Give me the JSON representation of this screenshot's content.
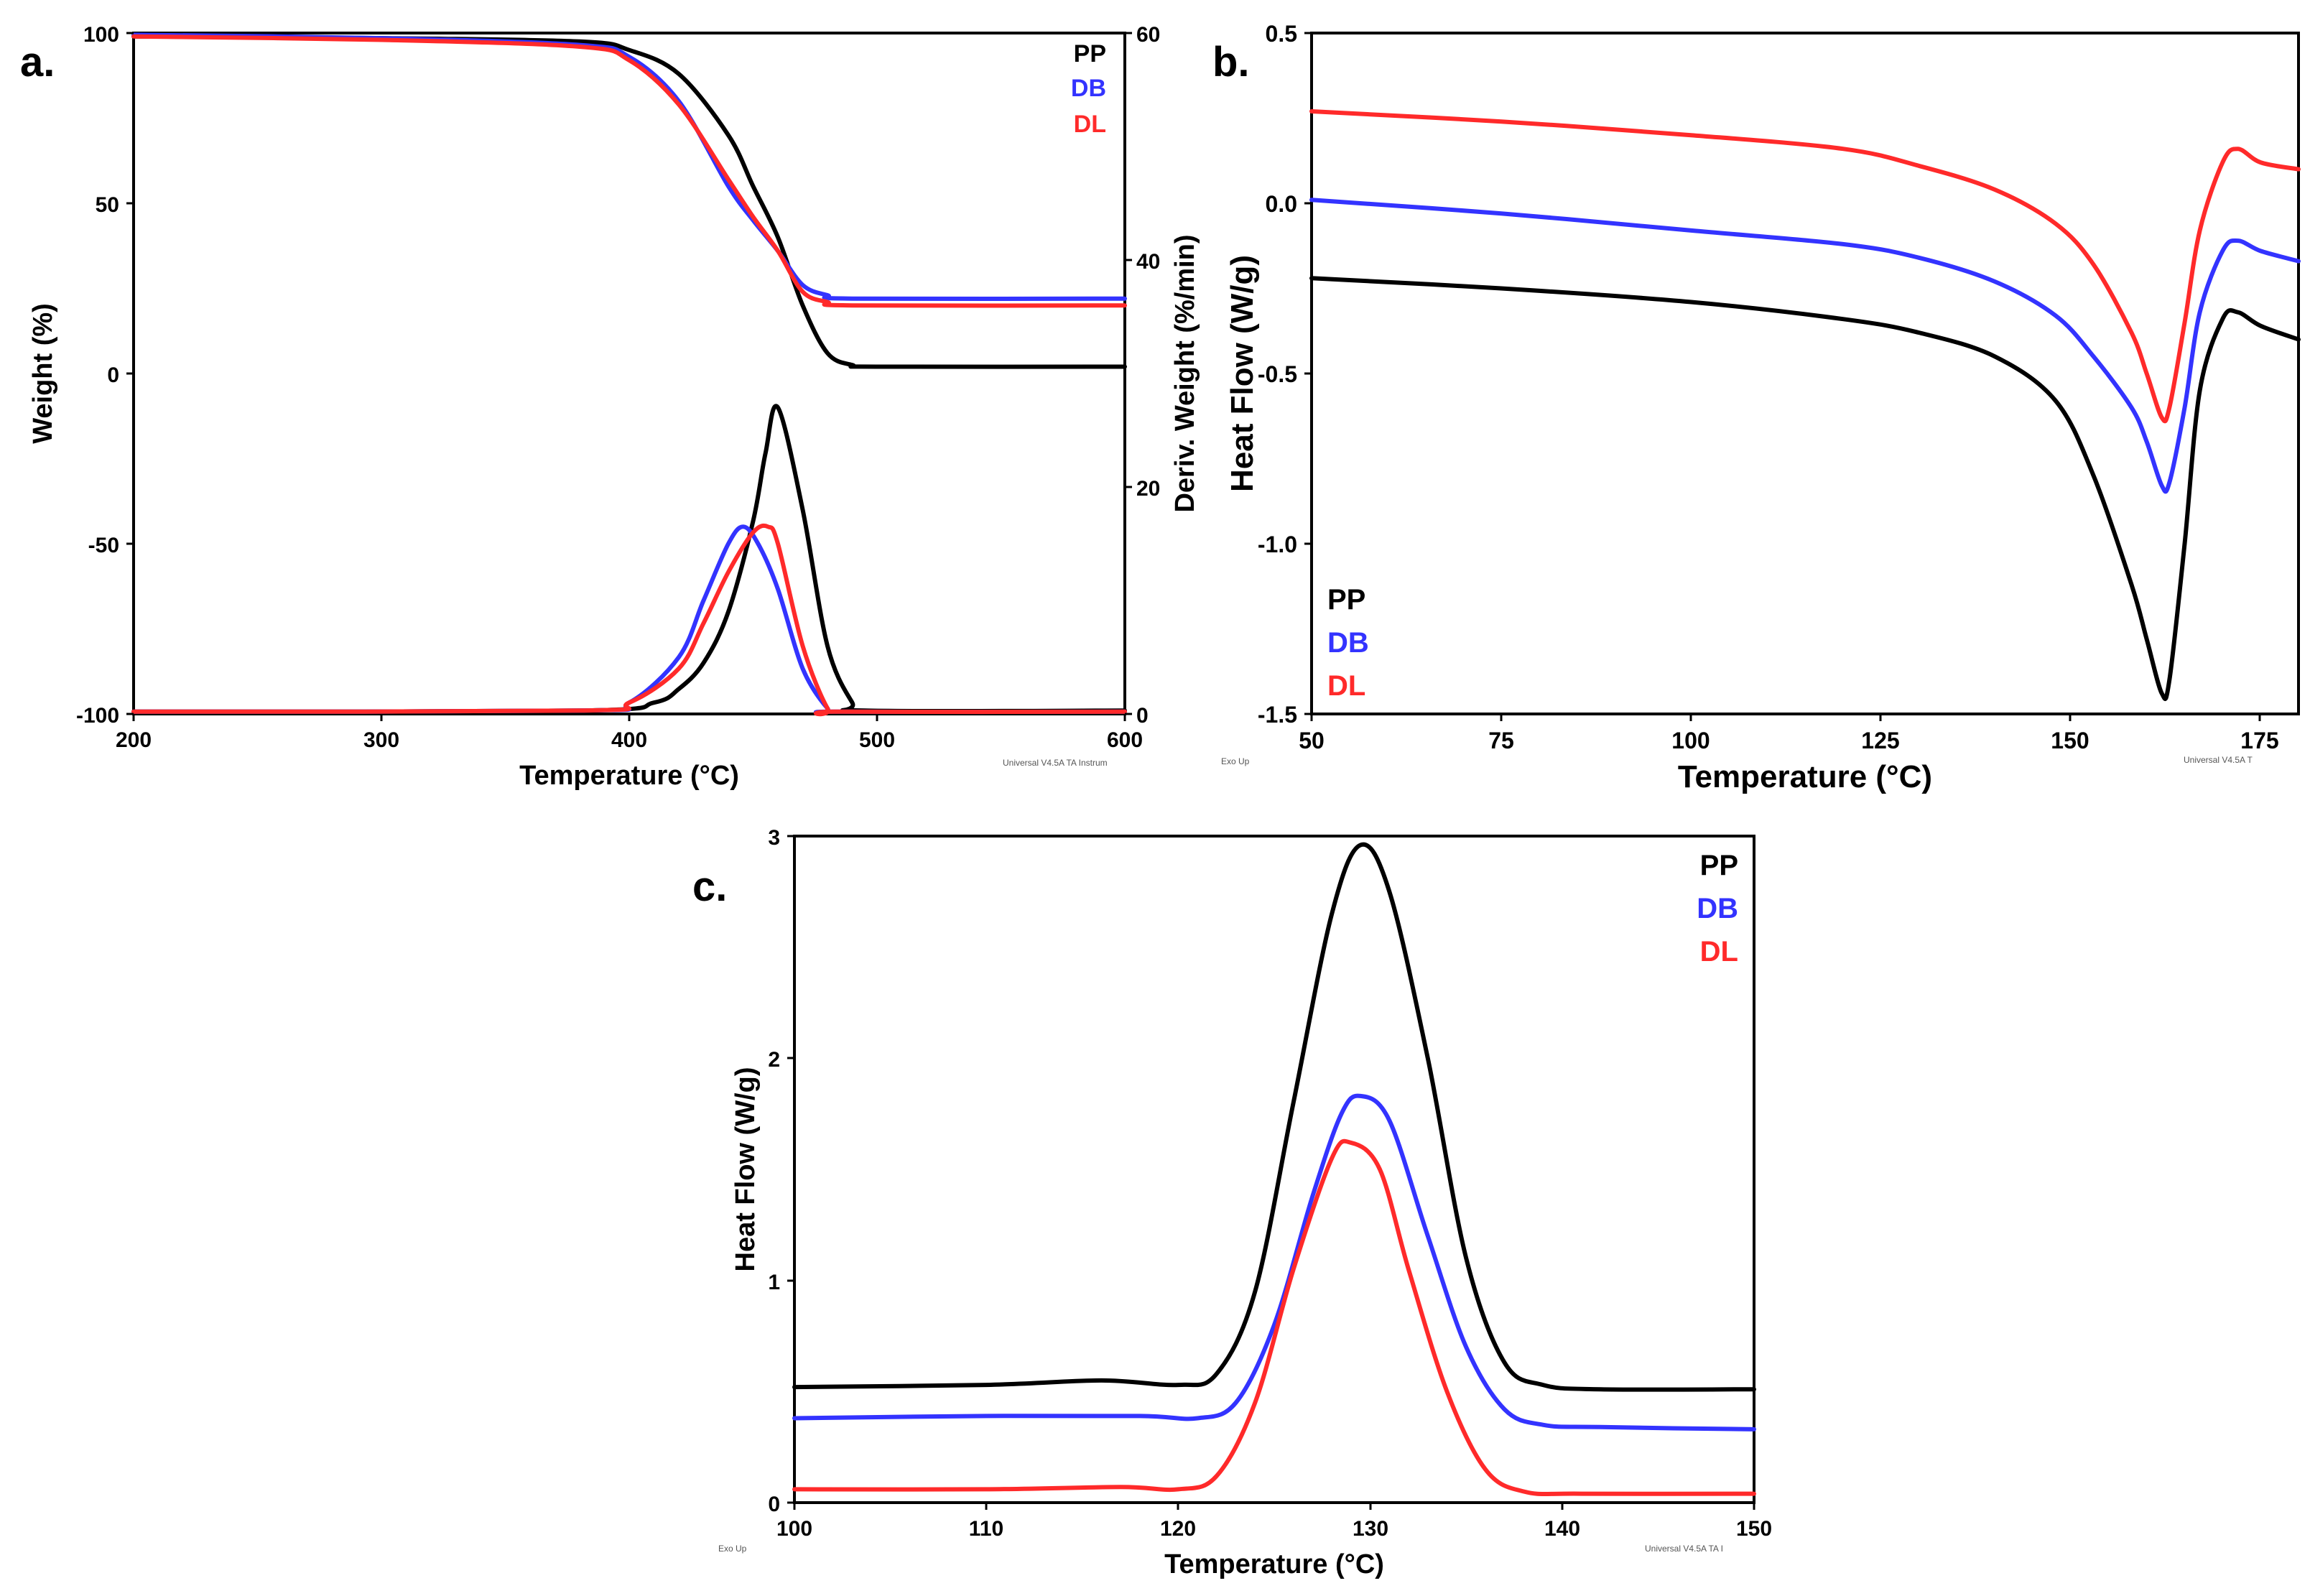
{
  "colors": {
    "PP": "#000000",
    "DB": "#3333ff",
    "DL": "#ff2a2a"
  },
  "chart_data": [
    {
      "panel": "a.",
      "type": "line",
      "xlabel": "Temperature (°C)",
      "ylabel": "Weight (%)",
      "y2label": "Deriv. Weight (%/min)",
      "xlim": [
        200,
        600
      ],
      "ylim": [
        -100,
        100
      ],
      "y2lim": [
        0,
        60
      ],
      "xticks": [
        "200",
        "300",
        "400",
        "500",
        "600"
      ],
      "yticks": [
        "-100",
        "-50",
        "0",
        "50",
        "100"
      ],
      "y2ticks": [
        "0",
        "20",
        "40",
        "60"
      ],
      "legend": [
        "PP",
        "DB",
        "DL"
      ],
      "footer": "Universal V4.5A TA Instrum",
      "series": [
        {
          "name": "PP",
          "axis": "left",
          "x": [
            200,
            300,
            380,
            400,
            420,
            440,
            450,
            460,
            470,
            480,
            490,
            500,
            600
          ],
          "y": [
            99,
            98.5,
            97.5,
            95,
            88,
            70,
            55,
            40,
            20,
            6,
            2.5,
            2,
            2
          ]
        },
        {
          "name": "DB",
          "axis": "left",
          "x": [
            200,
            300,
            380,
            400,
            420,
            440,
            450,
            460,
            470,
            480,
            490,
            600
          ],
          "y": [
            99.5,
            98.5,
            96.5,
            93,
            80,
            55,
            45,
            36,
            26,
            23,
            22,
            22
          ]
        },
        {
          "name": "DL",
          "axis": "left",
          "x": [
            200,
            300,
            380,
            400,
            420,
            440,
            450,
            460,
            470,
            480,
            490,
            600
          ],
          "y": [
            99,
            98,
            96,
            92,
            79,
            57,
            46,
            36,
            24,
            21,
            20,
            20
          ]
        },
        {
          "name": "PP",
          "axis": "right",
          "x": [
            200,
            380,
            410,
            420,
            430,
            440,
            450,
            455,
            460,
            470,
            480,
            490,
            495,
            600
          ],
          "y": [
            0.2,
            0.3,
            1,
            2.2,
            4.5,
            9,
            17,
            23,
            27,
            18,
            6,
            1,
            0.3,
            0.3
          ]
        },
        {
          "name": "DB",
          "axis": "right",
          "x": [
            200,
            380,
            400,
            420,
            430,
            440,
            446,
            452,
            460,
            470,
            480,
            485,
            600
          ],
          "y": [
            0.2,
            0.3,
            1,
            5,
            10,
            15,
            16.5,
            15,
            11,
            4,
            0.5,
            0.2,
            0.2
          ]
        },
        {
          "name": "DL",
          "axis": "right",
          "x": [
            200,
            380,
            400,
            420,
            430,
            440,
            450,
            456,
            460,
            470,
            480,
            485,
            600
          ],
          "y": [
            0.2,
            0.3,
            1,
            4,
            8,
            12.5,
            16,
            16.5,
            15,
            6,
            0.5,
            0.2,
            0.2
          ]
        }
      ]
    },
    {
      "panel": "b.",
      "type": "line",
      "xlabel": "Temperature (°C)",
      "ylabel": "Heat Flow (W/g)",
      "xlim": [
        50,
        180
      ],
      "ylim": [
        -1.5,
        0.5
      ],
      "xticks": [
        "50",
        "75",
        "100",
        "125",
        "150",
        "175"
      ],
      "yticks": [
        "-1.5",
        "-1.0",
        "-0.5",
        "0.0",
        "0.5"
      ],
      "legend": [
        "PP",
        "DB",
        "DL"
      ],
      "footer_left": "Exo Up",
      "footer": "Universal V4.5A T",
      "series": [
        {
          "name": "PP",
          "x": [
            50,
            75,
            100,
            120,
            130,
            140,
            148,
            153,
            158,
            160,
            162,
            163,
            165,
            167,
            170,
            172,
            175,
            180
          ],
          "y": [
            -0.22,
            -0.25,
            -0.29,
            -0.34,
            -0.38,
            -0.45,
            -0.58,
            -0.8,
            -1.12,
            -1.28,
            -1.44,
            -1.4,
            -1.0,
            -0.55,
            -0.34,
            -0.32,
            -0.36,
            -0.4
          ]
        },
        {
          "name": "DB",
          "x": [
            50,
            75,
            100,
            120,
            130,
            140,
            148,
            153,
            158,
            160,
            162,
            163,
            165,
            167,
            170,
            172,
            175,
            180
          ],
          "y": [
            0.01,
            -0.03,
            -0.08,
            -0.12,
            -0.16,
            -0.23,
            -0.33,
            -0.45,
            -0.6,
            -0.7,
            -0.83,
            -0.82,
            -0.6,
            -0.32,
            -0.14,
            -0.11,
            -0.14,
            -0.17
          ]
        },
        {
          "name": "DL",
          "x": [
            50,
            75,
            100,
            120,
            130,
            140,
            148,
            153,
            158,
            160,
            162,
            163,
            165,
            167,
            170,
            172,
            175,
            180
          ],
          "y": [
            0.27,
            0.24,
            0.2,
            0.16,
            0.11,
            0.04,
            -0.06,
            -0.18,
            -0.38,
            -0.5,
            -0.63,
            -0.6,
            -0.35,
            -0.08,
            0.12,
            0.16,
            0.12,
            0.1
          ]
        }
      ]
    },
    {
      "panel": "c.",
      "type": "line",
      "xlabel": "Temperature (°C)",
      "ylabel": "Heat Flow (W/g)",
      "xlim": [
        100,
        150
      ],
      "ylim": [
        0,
        3
      ],
      "xticks": [
        "100",
        "110",
        "120",
        "130",
        "140",
        "150"
      ],
      "yticks": [
        "0",
        "1",
        "2",
        "3"
      ],
      "legend": [
        "PP",
        "DB",
        "DL"
      ],
      "footer_left": "Exo Up",
      "footer": "Universal V4.5A TA I",
      "series": [
        {
          "name": "PP",
          "x": [
            100,
            110,
            116,
            120,
            122,
            124,
            126,
            128,
            129.5,
            131,
            133,
            135,
            137,
            139,
            142,
            150
          ],
          "y": [
            0.52,
            0.53,
            0.55,
            0.53,
            0.58,
            0.95,
            1.8,
            2.65,
            2.96,
            2.75,
            2.0,
            1.1,
            0.63,
            0.53,
            0.51,
            0.51
          ]
        },
        {
          "name": "DB",
          "x": [
            100,
            110,
            118,
            121,
            123,
            125,
            127,
            128.5,
            129.5,
            131,
            133,
            135,
            137,
            139,
            142,
            150
          ],
          "y": [
            0.38,
            0.39,
            0.39,
            0.38,
            0.45,
            0.8,
            1.38,
            1.75,
            1.83,
            1.72,
            1.2,
            0.7,
            0.42,
            0.35,
            0.34,
            0.33
          ]
        },
        {
          "name": "DL",
          "x": [
            100,
            110,
            117,
            120,
            122,
            124,
            126,
            128,
            129,
            130.5,
            132,
            134,
            136,
            138,
            141,
            150
          ],
          "y": [
            0.06,
            0.06,
            0.07,
            0.06,
            0.12,
            0.45,
            1.05,
            1.55,
            1.62,
            1.5,
            1.05,
            0.5,
            0.15,
            0.05,
            0.04,
            0.04
          ]
        }
      ]
    }
  ]
}
